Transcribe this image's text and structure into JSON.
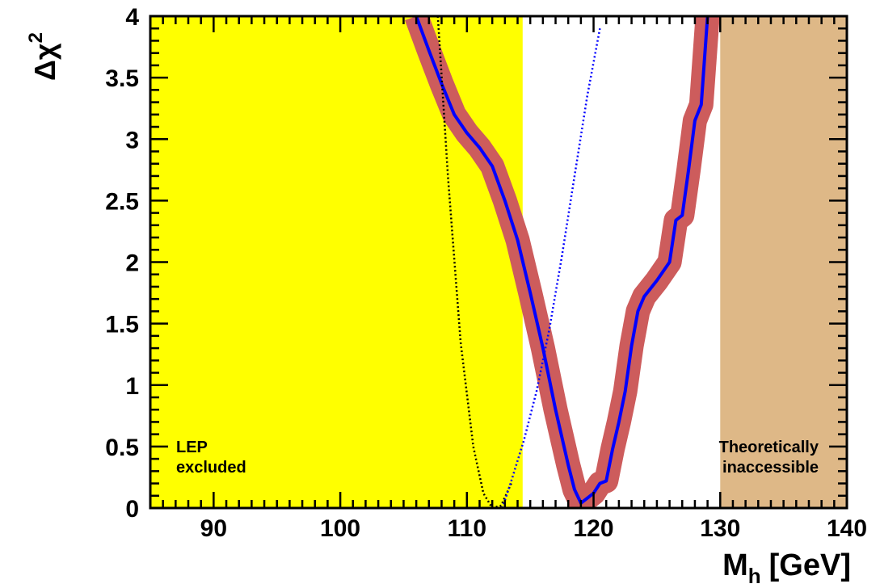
{
  "chart_data": {
    "type": "line",
    "xlabel": {
      "main": "M",
      "sub": "h",
      "unit": "[GeV]"
    },
    "ylabel": {
      "main": "Δχ",
      "sup": "2"
    },
    "xlim": [
      85,
      140
    ],
    "ylim": [
      0,
      4
    ],
    "x_ticks": [
      90,
      100,
      110,
      120,
      130,
      140
    ],
    "y_ticks": [
      0,
      0.5,
      1,
      1.5,
      2,
      2.5,
      3,
      3.5,
      4
    ],
    "x_tick_labels": [
      "90",
      "100",
      "110",
      "120",
      "130",
      "140"
    ],
    "y_tick_labels": [
      "0",
      "0.5",
      "1",
      "1.5",
      "2",
      "2.5",
      "3",
      "3.5",
      "4"
    ],
    "grid": false,
    "regions": [
      {
        "id": "lep",
        "x": [
          85,
          114.4
        ],
        "color": "#ffff00",
        "label_lines": [
          "LEP",
          "excluded"
        ]
      },
      {
        "id": "theory",
        "x": [
          130,
          140
        ],
        "color": "#deb887",
        "label_lines": [
          "Theoretically",
          "inaccessible"
        ]
      }
    ],
    "series": [
      {
        "id": "band",
        "style": "band",
        "color": "#cd5c5c",
        "x": [
          106,
          107,
          108,
          109,
          110,
          111,
          112,
          113,
          114,
          115,
          116,
          117,
          118,
          118.5,
          119,
          119.5,
          120,
          120.5,
          121,
          121.5,
          122,
          122.5,
          123,
          123.5,
          124,
          125,
          126,
          126.5,
          127,
          127.5,
          128,
          128.5,
          129
        ],
        "y": [
          4.0,
          3.72,
          3.45,
          3.2,
          3.05,
          2.93,
          2.78,
          2.5,
          2.18,
          1.75,
          1.3,
          0.8,
          0.35,
          0.15,
          0.04,
          0.08,
          0.12,
          0.2,
          0.22,
          0.48,
          0.7,
          0.95,
          1.32,
          1.6,
          1.72,
          1.85,
          2.0,
          2.34,
          2.38,
          2.75,
          3.15,
          3.28,
          4.0
        ]
      },
      {
        "id": "fit",
        "style": "solid",
        "color": "#0000ff",
        "x": [
          106,
          107,
          108,
          109,
          110,
          111,
          112,
          113,
          114,
          115,
          116,
          117,
          118,
          118.5,
          119,
          119.5,
          120,
          120.5,
          121,
          121.5,
          122,
          122.5,
          123,
          123.5,
          124,
          125,
          126,
          126.5,
          127,
          127.5,
          128,
          128.5,
          129
        ],
        "y": [
          4.0,
          3.72,
          3.45,
          3.2,
          3.05,
          2.93,
          2.78,
          2.5,
          2.18,
          1.75,
          1.3,
          0.8,
          0.35,
          0.15,
          0.04,
          0.08,
          0.12,
          0.2,
          0.22,
          0.48,
          0.7,
          0.95,
          1.32,
          1.6,
          1.72,
          1.85,
          2.0,
          2.34,
          2.38,
          2.75,
          3.15,
          3.28,
          4.0
        ]
      },
      {
        "id": "dotted-black",
        "style": "dotted",
        "color": "#000000",
        "x": [
          107.7,
          108.5,
          109.5,
          110.5,
          111.3,
          112,
          112.7,
          113.5
        ],
        "y": [
          4.0,
          2.7,
          1.35,
          0.5,
          0.12,
          0.0,
          0.02,
          0.2
        ]
      },
      {
        "id": "dotted-blue",
        "style": "dotted",
        "color": "#0000ff",
        "x": [
          112.8,
          113.5,
          114.5,
          115.5,
          116.5,
          117.5,
          118.5,
          119.5,
          120.5
        ],
        "y": [
          0.0,
          0.22,
          0.55,
          0.95,
          1.45,
          2.05,
          2.7,
          3.35,
          3.9
        ]
      }
    ]
  }
}
